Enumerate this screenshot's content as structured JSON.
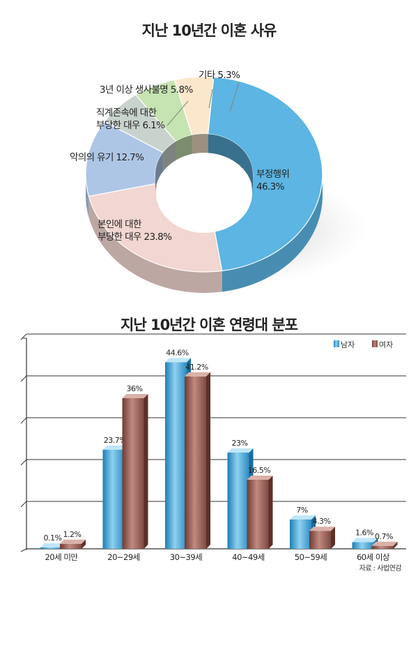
{
  "chart_data": [
    {
      "type": "pie",
      "variant": "donut",
      "title": "지난 10년간 이혼 사유",
      "slices": [
        {
          "label_lines": [
            "부정행위",
            "46.3%"
          ],
          "value": 46.3,
          "color": "#5cb5e3"
        },
        {
          "label_lines": [
            "본인에 대한",
            "부당한 대우 23.8%"
          ],
          "value": 23.8,
          "color": "#f1d6d1"
        },
        {
          "label_lines": [
            "악의의 유기 12.7%"
          ],
          "value": 12.7,
          "color": "#aec6e6"
        },
        {
          "label_lines": [
            "직계존속에 대한",
            "부당한 대우 6.1%"
          ],
          "value": 6.1,
          "color": "#c9d3cd"
        },
        {
          "label_lines": [
            "3년 이상 생사불명 5.8%"
          ],
          "value": 5.8,
          "color": "#c6e3b2"
        },
        {
          "label_lines": [
            "기타 5.3%"
          ],
          "value": 5.3,
          "color": "#fbe8cc"
        }
      ]
    },
    {
      "type": "bar",
      "title": "지난 10년간 이혼  연령대 분포",
      "categories": [
        "20세 미만",
        "20~29세",
        "30~39세",
        "40~49세",
        "50~59세",
        "60세 이상"
      ],
      "series": [
        {
          "name": "남자",
          "values": [
            0.1,
            23.7,
            44.6,
            23,
            7,
            1.6
          ],
          "labels": [
            "0.1%",
            "23.7%",
            "44.6%",
            "23%",
            "7%",
            "1.6%"
          ],
          "color": "#3e9fd1"
        },
        {
          "name": "여자",
          "values": [
            1.2,
            36,
            41.2,
            16.5,
            4.3,
            0.7
          ],
          "labels": [
            "1.2%",
            "36%",
            "41.2%",
            "16.5%",
            "4.3%",
            "0.7%"
          ],
          "color": "#9c6258"
        }
      ],
      "ylim": [
        0,
        50
      ],
      "source": "자료 : 사법연감"
    }
  ]
}
